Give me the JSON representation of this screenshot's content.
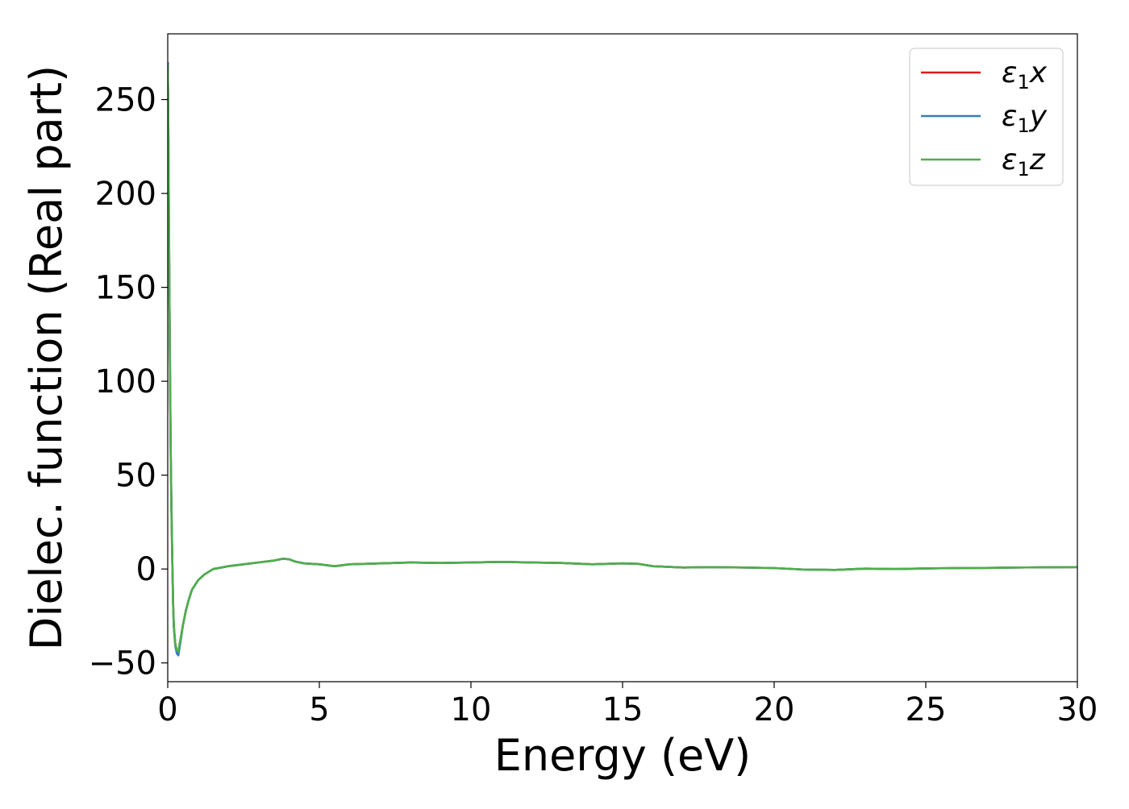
{
  "chart_data": {
    "type": "line",
    "title": "",
    "xlabel": "Energy (eV)",
    "ylabel": "Dielec. function (Real part)",
    "xlim": [
      0,
      30
    ],
    "ylim": [
      -60,
      285
    ],
    "x_ticks": [
      0,
      5,
      10,
      15,
      20,
      25,
      30
    ],
    "y_ticks": [
      -50,
      0,
      50,
      100,
      150,
      200,
      250
    ],
    "x_tick_labels": [
      "0",
      "5",
      "10",
      "15",
      "20",
      "25",
      "30"
    ],
    "y_tick_labels": [
      "−50",
      "0",
      "50",
      "100",
      "150",
      "200",
      "250"
    ],
    "grid": false,
    "legend": {
      "position": "top-right",
      "entries": [
        {
          "base": "ε",
          "sub": "1",
          "var": "x"
        },
        {
          "base": "ε",
          "sub": "1",
          "var": "y"
        },
        {
          "base": "ε",
          "sub": "1",
          "var": "z"
        }
      ]
    },
    "series": [
      {
        "name": "ε1x",
        "color": "#e41a1c",
        "x": [
          0,
          0.02,
          0.05,
          0.08,
          0.1,
          0.12,
          0.15,
          0.18,
          0.2,
          0.25,
          0.3,
          0.35,
          0.4,
          0.5,
          0.6,
          0.7,
          0.8,
          1.0,
          1.2,
          1.5,
          2.0,
          2.5,
          3.0,
          3.5,
          3.8,
          4.0,
          4.2,
          4.5,
          5.0,
          5.5,
          6.0,
          7.0,
          8.0,
          9.0,
          10.0,
          11.0,
          12.0,
          13.0,
          14.0,
          15.0,
          15.5,
          16.0,
          17.0,
          18.0,
          19.0,
          20.0,
          21.0,
          22.0,
          23.0,
          24.0,
          25.0,
          26.0,
          27.0,
          28.0,
          29.0,
          30.0
        ],
        "values": [
          270,
          235,
          160,
          95,
          60,
          35,
          5,
          -20,
          -30,
          -40,
          -44,
          -45,
          -40,
          -30,
          -22,
          -16,
          -11,
          -6,
          -3,
          0,
          1.5,
          2.5,
          3.5,
          4.5,
          5.5,
          5.2,
          4.0,
          3.0,
          2.5,
          1.5,
          2.5,
          3.0,
          3.5,
          3.2,
          3.5,
          3.8,
          3.5,
          3.2,
          2.5,
          3.0,
          2.8,
          1.5,
          0.8,
          1.0,
          0.8,
          0.5,
          -0.3,
          -0.5,
          0.2,
          0.0,
          0.3,
          0.5,
          0.6,
          0.8,
          0.9,
          1.0
        ]
      },
      {
        "name": "ε1y",
        "color": "#377eb8",
        "x": [
          0,
          0.02,
          0.05,
          0.08,
          0.1,
          0.12,
          0.15,
          0.18,
          0.2,
          0.25,
          0.3,
          0.35,
          0.4,
          0.5,
          0.6,
          0.7,
          0.8,
          1.0,
          1.2,
          1.5,
          2.0,
          2.5,
          3.0,
          3.5,
          3.8,
          4.0,
          4.2,
          4.5,
          5.0,
          5.5,
          6.0,
          7.0,
          8.0,
          9.0,
          10.0,
          11.0,
          12.0,
          13.0,
          14.0,
          15.0,
          15.5,
          16.0,
          17.0,
          18.0,
          19.0,
          20.0,
          21.0,
          22.0,
          23.0,
          24.0,
          25.0,
          26.0,
          27.0,
          28.0,
          29.0,
          30.0
        ],
        "values": [
          270,
          236,
          161,
          96,
          61,
          36,
          6,
          -20,
          -31,
          -41,
          -45,
          -46,
          -41,
          -30,
          -22,
          -16,
          -11,
          -6,
          -3,
          0,
          1.5,
          2.5,
          3.5,
          4.5,
          5.5,
          5.2,
          4.0,
          3.0,
          2.5,
          1.5,
          2.5,
          3.0,
          3.5,
          3.2,
          3.5,
          3.8,
          3.5,
          3.2,
          2.5,
          3.0,
          2.8,
          1.5,
          0.8,
          1.0,
          0.8,
          0.5,
          -0.3,
          -0.5,
          0.2,
          0.0,
          0.3,
          0.5,
          0.6,
          0.8,
          0.9,
          1.0
        ]
      },
      {
        "name": "ε1z",
        "color": "#4daf4a",
        "x": [
          0,
          0.02,
          0.05,
          0.08,
          0.1,
          0.12,
          0.15,
          0.18,
          0.2,
          0.25,
          0.3,
          0.35,
          0.4,
          0.5,
          0.6,
          0.7,
          0.8,
          1.0,
          1.2,
          1.5,
          2.0,
          2.5,
          3.0,
          3.5,
          3.8,
          4.0,
          4.2,
          4.5,
          5.0,
          5.5,
          6.0,
          7.0,
          8.0,
          9.0,
          10.0,
          11.0,
          12.0,
          13.0,
          14.0,
          15.0,
          15.5,
          16.0,
          17.0,
          18.0,
          19.0,
          20.0,
          21.0,
          22.0,
          23.0,
          24.0,
          25.0,
          26.0,
          27.0,
          28.0,
          29.0,
          30.0
        ],
        "values": [
          268,
          233,
          158,
          93,
          58,
          33,
          4,
          -21,
          -30,
          -40,
          -43,
          -44,
          -39,
          -30,
          -22,
          -16,
          -11,
          -6,
          -3,
          0,
          1.5,
          2.5,
          3.5,
          4.5,
          5.5,
          5.2,
          4.0,
          3.0,
          2.5,
          1.5,
          2.5,
          3.0,
          3.5,
          3.2,
          3.5,
          3.8,
          3.5,
          3.2,
          2.5,
          3.0,
          2.8,
          1.5,
          0.8,
          1.0,
          0.8,
          0.5,
          -0.3,
          -0.5,
          0.2,
          0.0,
          0.3,
          0.5,
          0.6,
          0.8,
          0.9,
          1.0
        ]
      }
    ]
  }
}
